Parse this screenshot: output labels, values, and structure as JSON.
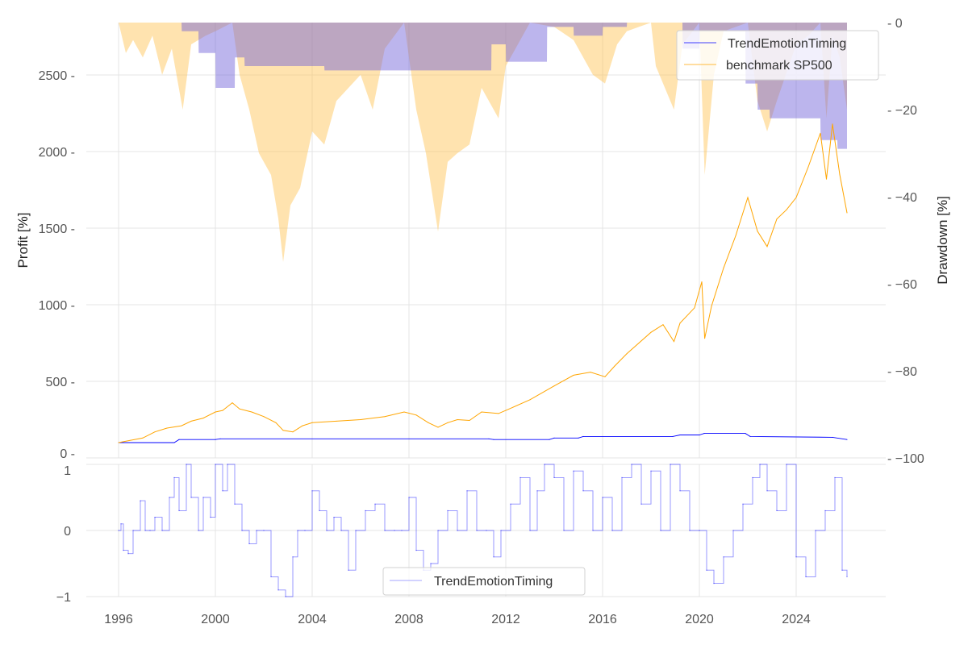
{
  "chart_data": [
    {
      "type": "line",
      "title": "",
      "xlabel": "",
      "ylabel": "Profit [%]",
      "ylabel_right": "Drawdown [%]",
      "xlim": [
        1994.7,
        2026.9
      ],
      "ylim": [
        0,
        2820
      ],
      "ylim_right": [
        -100,
        0
      ],
      "grid": true,
      "legend_position": "top-right",
      "x_ticks": [
        "1996",
        "2000",
        "2004",
        "2008",
        "2012",
        "2016",
        "2020",
        "2024"
      ],
      "x_tick_values": [
        1996,
        2000,
        2004,
        2008,
        2012,
        2016,
        2020,
        2024
      ],
      "y_ticks": [
        "0",
        "500",
        "1000",
        "1500",
        "2000",
        "2500"
      ],
      "y_tick_values": [
        0,
        500,
        1000,
        1500,
        2000,
        2500
      ],
      "y_ticks_right": [
        "0",
        "−20",
        "−40",
        "−60",
        "−80",
        "−100"
      ],
      "y_tick_values_right": [
        0,
        -20,
        -40,
        -60,
        -80,
        -100
      ],
      "legend": [
        "TrendEmotionTiming",
        "benchmark SP500"
      ],
      "series": [
        {
          "name": "TrendEmotionTiming",
          "color": "#0000ff",
          "x": [
            1996,
            1998.3,
            1998.5,
            2000,
            2000.2,
            2011.3,
            2011.5,
            2013.8,
            2014,
            2015,
            2015.2,
            2018.9,
            2019.2,
            2020,
            2020.2,
            2021.9,
            2022.1,
            2025.5,
            2026.1
          ],
          "y": [
            100,
            100,
            120,
            120,
            125,
            125,
            120,
            120,
            130,
            130,
            140,
            140,
            150,
            150,
            160,
            160,
            140,
            135,
            120
          ]
        },
        {
          "name": "benchmark SP500",
          "color": "#ffa500",
          "x": [
            1996,
            1996.5,
            1997,
            1997.5,
            1998,
            1998.6,
            1999,
            1999.5,
            2000,
            2000.3,
            2000.7,
            2001,
            2001.5,
            2002,
            2002.5,
            2002.8,
            2003.2,
            2003.6,
            2004,
            2005,
            2006,
            2007,
            2007.8,
            2008.3,
            2008.8,
            2009.2,
            2009.6,
            2010,
            2010.5,
            2011,
            2011.7,
            2012,
            2013,
            2014,
            2014.8,
            2015.5,
            2016.1,
            2016.5,
            2017,
            2018,
            2018.5,
            2018.95,
            2019.2,
            2019.8,
            2020.1,
            2020.22,
            2020.5,
            2021,
            2021.5,
            2022,
            2022.4,
            2022.8,
            2023.2,
            2023.6,
            2024,
            2024.5,
            2025,
            2025.25,
            2025.5,
            2025.8,
            2026.1
          ],
          "y": [
            100,
            115,
            130,
            170,
            195,
            210,
            240,
            260,
            300,
            310,
            360,
            320,
            300,
            270,
            230,
            180,
            170,
            210,
            230,
            240,
            250,
            270,
            300,
            280,
            230,
            200,
            230,
            250,
            245,
            300,
            290,
            310,
            380,
            470,
            540,
            560,
            530,
            600,
            680,
            820,
            870,
            760,
            880,
            980,
            1150,
            780,
            990,
            1240,
            1450,
            1700,
            1480,
            1380,
            1560,
            1620,
            1700,
            1900,
            2120,
            1820,
            2180,
            1850,
            1600
          ]
        }
      ],
      "drawdown_series": [
        {
          "name": "TrendEmotionTiming drawdown",
          "color": "#0000ff",
          "x": [
            1996,
            1998.6,
            1998.61,
            1999.3,
            1999.31,
            2000,
            2000.01,
            2000.8,
            2000.81,
            2001.2,
            2001.21,
            2004.5,
            2004.51,
            2011.4,
            2011.41,
            2012,
            2012.01,
            2013.7,
            2013.71,
            2014.8,
            2014.81,
            2016,
            2016.01,
            2017,
            2017.01,
            2019.3,
            2019.31,
            2020,
            2020.01,
            2021.9,
            2021.91,
            2022.4,
            2022.41,
            2022.9,
            2022.91,
            2025,
            2025.01,
            2025.7,
            2025.71,
            2026.1
          ],
          "y": [
            0,
            0,
            -2,
            -2,
            -7,
            -7,
            -15,
            -15,
            -8,
            -8,
            -10,
            -10,
            -11,
            -11,
            -5,
            -5,
            -9,
            -9,
            -1,
            -1,
            -3,
            -3,
            -1,
            -1,
            0,
            0,
            -6,
            -6,
            -2,
            -2,
            -14,
            -14,
            -20,
            -20,
            -22,
            -22,
            -27,
            -27,
            -29,
            -29
          ]
        },
        {
          "name": "benchmark SP500 drawdown",
          "color": "#ffa500",
          "x": [
            1996,
            1996.3,
            1996.6,
            1997,
            1997.4,
            1997.8,
            1998.2,
            1998.65,
            1999,
            1999.6,
            2000,
            2000.7,
            2001,
            2001.4,
            2001.8,
            2002.3,
            2002.6,
            2002.8,
            2003.1,
            2003.5,
            2004,
            2004.5,
            2005,
            2006,
            2006.5,
            2007,
            2007.8,
            2008.3,
            2008.7,
            2009.2,
            2009.6,
            2010,
            2010.5,
            2011,
            2011.7,
            2012,
            2012.5,
            2013,
            2014,
            2014.8,
            2015.6,
            2016.1,
            2016.6,
            2017,
            2018,
            2018.2,
            2018.95,
            2019.3,
            2020,
            2020.22,
            2020.6,
            2021,
            2022,
            2022.4,
            2022.8,
            2023.2,
            2024,
            2024.5,
            2025,
            2025.25,
            2025.5,
            2025.8,
            2026.1
          ],
          "y": [
            0,
            -7,
            -4,
            -8,
            -3,
            -12,
            -6,
            -20,
            -5,
            -3,
            -2,
            0,
            -12,
            -20,
            -30,
            -35,
            -45,
            -55,
            -42,
            -38,
            -25,
            -28,
            -18,
            -12,
            -20,
            -6,
            0,
            -20,
            -30,
            -48,
            -32,
            -30,
            -28,
            -15,
            -22,
            -10,
            -5,
            0,
            -1,
            -4,
            -12,
            -14,
            -5,
            -2,
            0,
            -10,
            -20,
            -5,
            0,
            -35,
            -12,
            -2,
            0,
            -18,
            -25,
            -18,
            -5,
            -3,
            0,
            -22,
            -3,
            -8,
            -20
          ]
        }
      ]
    },
    {
      "type": "line",
      "xlabel": "",
      "ylabel": "",
      "ylim": [
        -1,
        1
      ],
      "y_ticks": [
        "1",
        "0",
        "−1"
      ],
      "y_tick_values": [
        1,
        0,
        -1
      ],
      "grid": true,
      "legend_position": "bottom-center",
      "legend": [
        "TrendEmotionTiming"
      ],
      "series": [
        {
          "name": "TrendEmotionTiming",
          "color": "#0000ff",
          "x": [
            1996,
            1996.1,
            1996.2,
            1996.4,
            1996.6,
            1996.9,
            1997.1,
            1997.3,
            1997.5,
            1997.8,
            1998.1,
            1998.3,
            1998.5,
            1998.8,
            1999,
            1999.3,
            1999.5,
            1999.8,
            2000,
            2000.3,
            2000.5,
            2000.8,
            2001.1,
            2001.4,
            2001.7,
            2002,
            2002.3,
            2002.6,
            2002.9,
            2003.2,
            2003.4,
            2003.7,
            2004,
            2004.3,
            2004.6,
            2004.9,
            2005.2,
            2005.5,
            2005.8,
            2006.2,
            2006.6,
            2007,
            2007.4,
            2007.7,
            2008,
            2008.3,
            2008.6,
            2008.9,
            2009.2,
            2009.6,
            2010,
            2010.4,
            2010.8,
            2011.2,
            2011.5,
            2011.8,
            2012.2,
            2012.6,
            2013,
            2013.3,
            2013.6,
            2014,
            2014.4,
            2014.8,
            2015.2,
            2015.6,
            2016,
            2016.4,
            2016.8,
            2017.2,
            2017.6,
            2018,
            2018.4,
            2018.8,
            2019.2,
            2019.6,
            2020,
            2020.3,
            2020.6,
            2021,
            2021.4,
            2021.8,
            2022.2,
            2022.5,
            2022.8,
            2023.2,
            2023.6,
            2024,
            2024.4,
            2024.8,
            2025.2,
            2025.6,
            2025.9,
            2026.1
          ],
          "y": [
            0,
            0.1,
            -0.3,
            -0.35,
            0,
            0.45,
            0,
            0,
            0.2,
            0,
            0.5,
            0.8,
            0.3,
            1,
            0.5,
            0,
            0.5,
            0.2,
            1,
            0.6,
            1,
            0.4,
            0,
            -0.2,
            0,
            0,
            -0.7,
            -0.9,
            -1,
            -0.4,
            0,
            0,
            0.6,
            0.3,
            0,
            0.2,
            0,
            -0.6,
            0,
            0.3,
            0.4,
            0,
            0,
            0,
            0.5,
            -0.3,
            -0.6,
            -0.5,
            0,
            0.3,
            0,
            0.6,
            0,
            0,
            -0.4,
            0,
            0.4,
            0.8,
            0,
            0.6,
            1,
            0.8,
            0,
            0.9,
            0.6,
            0,
            0.5,
            0,
            0.8,
            1,
            0.4,
            0.9,
            0,
            1,
            0.6,
            0,
            0,
            -0.6,
            -0.8,
            -0.4,
            0,
            0.4,
            0.8,
            1,
            0.6,
            0.3,
            1,
            -0.4,
            -0.7,
            0,
            0.3,
            0.8,
            -0.6,
            -0.7
          ]
        }
      ]
    }
  ]
}
